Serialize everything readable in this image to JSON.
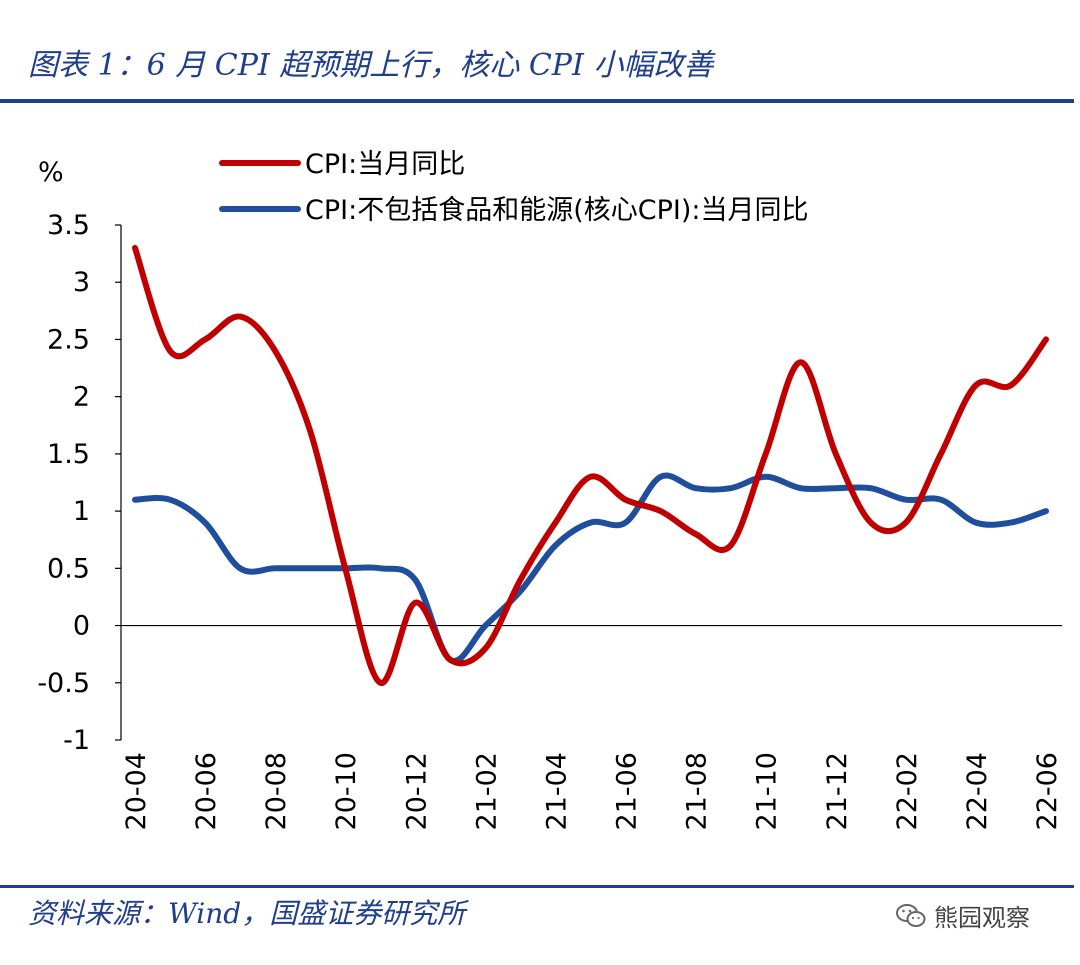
{
  "header": {
    "title": "图表 1：6 月 CPI 超预期上行，核心 CPI 小幅改善"
  },
  "footer": {
    "source": "资料来源：Wind，国盛证券研究所",
    "watermark": "熊园观察"
  },
  "chart_data": {
    "type": "line",
    "title": "",
    "ylabel": "%",
    "ylim": [
      -1,
      3.5
    ],
    "yticks": [
      3.5,
      3,
      2.5,
      2,
      1.5,
      1,
      0.5,
      0,
      -0.5,
      -1
    ],
    "ytick_labels": [
      "3.5",
      "3",
      "2.5",
      "2",
      "1.5",
      "1",
      "0.5",
      "0",
      "-0.5",
      "-1"
    ],
    "x": [
      "20-04",
      "20-05",
      "20-06",
      "20-07",
      "20-08",
      "20-09",
      "20-10",
      "20-11",
      "20-12",
      "21-01",
      "21-02",
      "21-03",
      "21-04",
      "21-05",
      "21-06",
      "21-07",
      "21-08",
      "21-09",
      "21-10",
      "21-11",
      "21-12",
      "22-01",
      "22-02",
      "22-03",
      "22-04",
      "22-05",
      "22-06"
    ],
    "xtick_labels": [
      "20-04",
      "20-06",
      "20-08",
      "20-10",
      "20-12",
      "21-02",
      "21-04",
      "21-06",
      "21-08",
      "21-10",
      "21-12",
      "22-02",
      "22-04",
      "22-06"
    ],
    "legend_position": "top",
    "series": [
      {
        "name": "CPI:当月同比",
        "color": "#c00000",
        "values": [
          3.3,
          2.4,
          2.5,
          2.7,
          2.4,
          1.7,
          0.5,
          -0.5,
          0.2,
          -0.3,
          -0.2,
          0.4,
          0.9,
          1.3,
          1.1,
          1.0,
          0.8,
          0.7,
          1.5,
          2.3,
          1.5,
          0.9,
          0.9,
          1.5,
          2.1,
          2.1,
          2.5
        ]
      },
      {
        "name": "CPI:不包括食品和能源(核心CPI):当月同比",
        "color": "#1f4e9c",
        "values": [
          1.1,
          1.1,
          0.9,
          0.5,
          0.5,
          0.5,
          0.5,
          0.5,
          0.4,
          -0.3,
          0.0,
          0.3,
          0.7,
          0.9,
          0.9,
          1.3,
          1.2,
          1.2,
          1.3,
          1.2,
          1.2,
          1.2,
          1.1,
          1.1,
          0.9,
          0.9,
          1.0
        ]
      }
    ]
  }
}
